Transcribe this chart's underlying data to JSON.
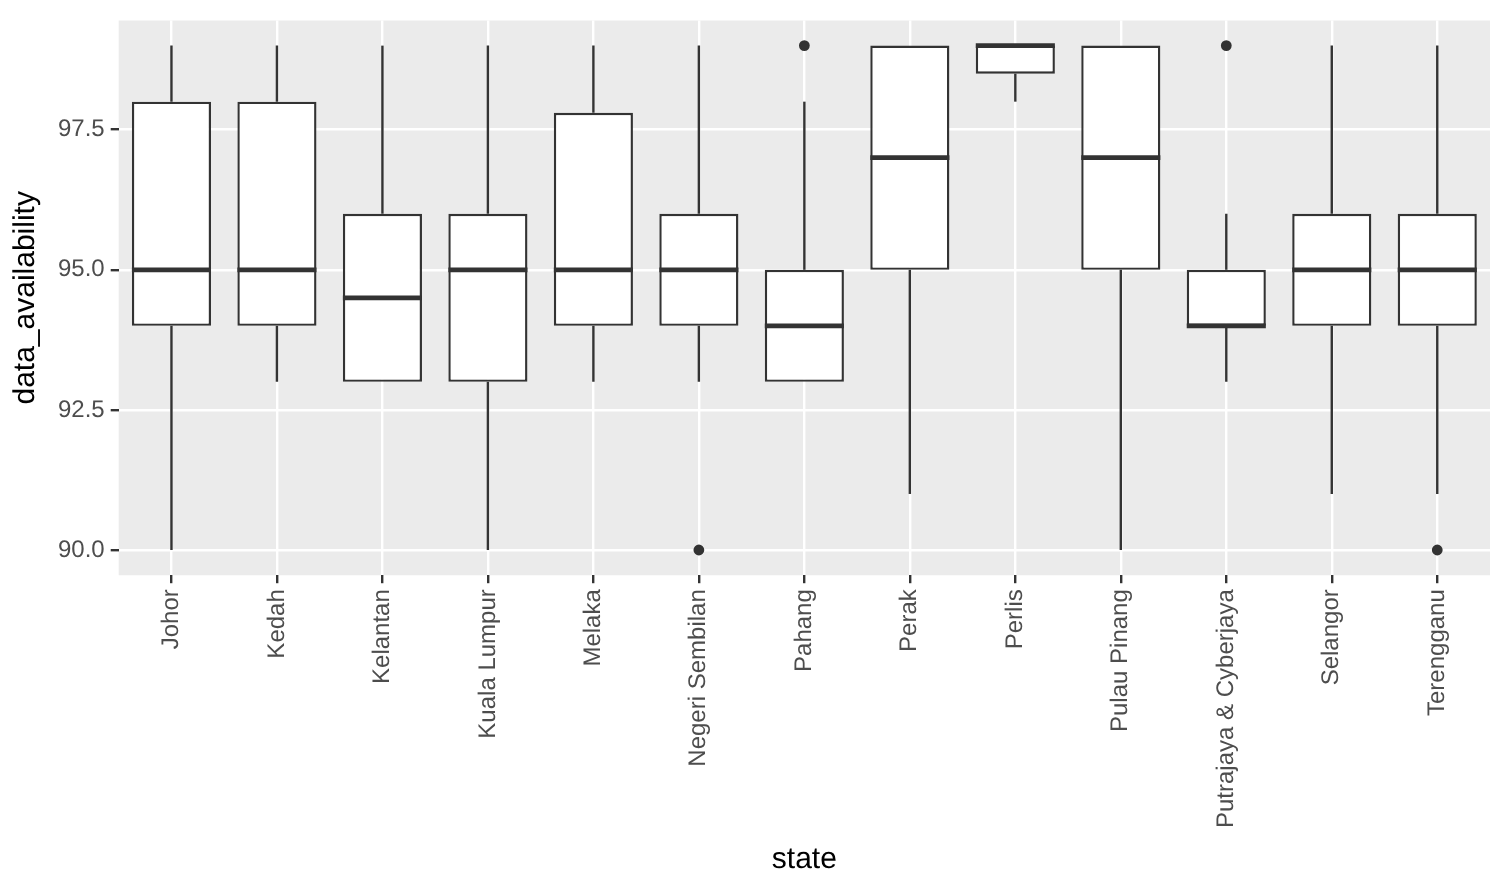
{
  "chart_data": {
    "type": "box",
    "xlabel": "state",
    "ylabel": "data_availability",
    "categories": [
      "Johor",
      "Kedah",
      "Kelantan",
      "Kuala Lumpur",
      "Melaka",
      "Negeri Sembilan",
      "Pahang",
      "Perak",
      "Perlis",
      "Pulau Pinang",
      "Putrajaya & Cyberjaya",
      "Selangor",
      "Terengganu"
    ],
    "boxes": [
      {
        "low": 90,
        "q1": 94,
        "median": 95,
        "q3": 98,
        "high": 99
      },
      {
        "low": 93,
        "q1": 94,
        "median": 95,
        "q3": 98,
        "high": 99
      },
      {
        "low": 93,
        "q1": 93,
        "median": 94.5,
        "q3": 96,
        "high": 99
      },
      {
        "low": 90,
        "q1": 93,
        "median": 95,
        "q3": 96,
        "high": 99
      },
      {
        "low": 93,
        "q1": 94,
        "median": 95,
        "q3": 97.8,
        "high": 99
      },
      {
        "low": 93,
        "q1": 94,
        "median": 95,
        "q3": 96,
        "high": 99,
        "outliers": [
          90
        ]
      },
      {
        "low": 93,
        "q1": 93,
        "median": 94,
        "q3": 95,
        "high": 98,
        "outliers": [
          99
        ]
      },
      {
        "low": 91,
        "q1": 95,
        "median": 97,
        "q3": 99,
        "high": 99
      },
      {
        "low": 98,
        "q1": 98.5,
        "median": 99,
        "q3": 99,
        "high": 99
      },
      {
        "low": 90,
        "q1": 95,
        "median": 97,
        "q3": 99,
        "high": 99
      },
      {
        "low": 93,
        "q1": 94,
        "median": 94,
        "q3": 95,
        "high": 96,
        "outliers": [
          99
        ]
      },
      {
        "low": 91,
        "q1": 94,
        "median": 95,
        "q3": 96,
        "high": 99
      },
      {
        "low": 91,
        "q1": 94,
        "median": 95,
        "q3": 96,
        "high": 99,
        "outliers": [
          90
        ]
      }
    ],
    "color": "#333333",
    "ylim": [
      89.55,
      99.45
    ],
    "yticks": [
      {
        "value": 90,
        "label": "90.0"
      },
      92.5,
      {
        "value": 95,
        "label": "95.0"
      },
      97.5
    ],
    "grid": true,
    "legend": false
  }
}
